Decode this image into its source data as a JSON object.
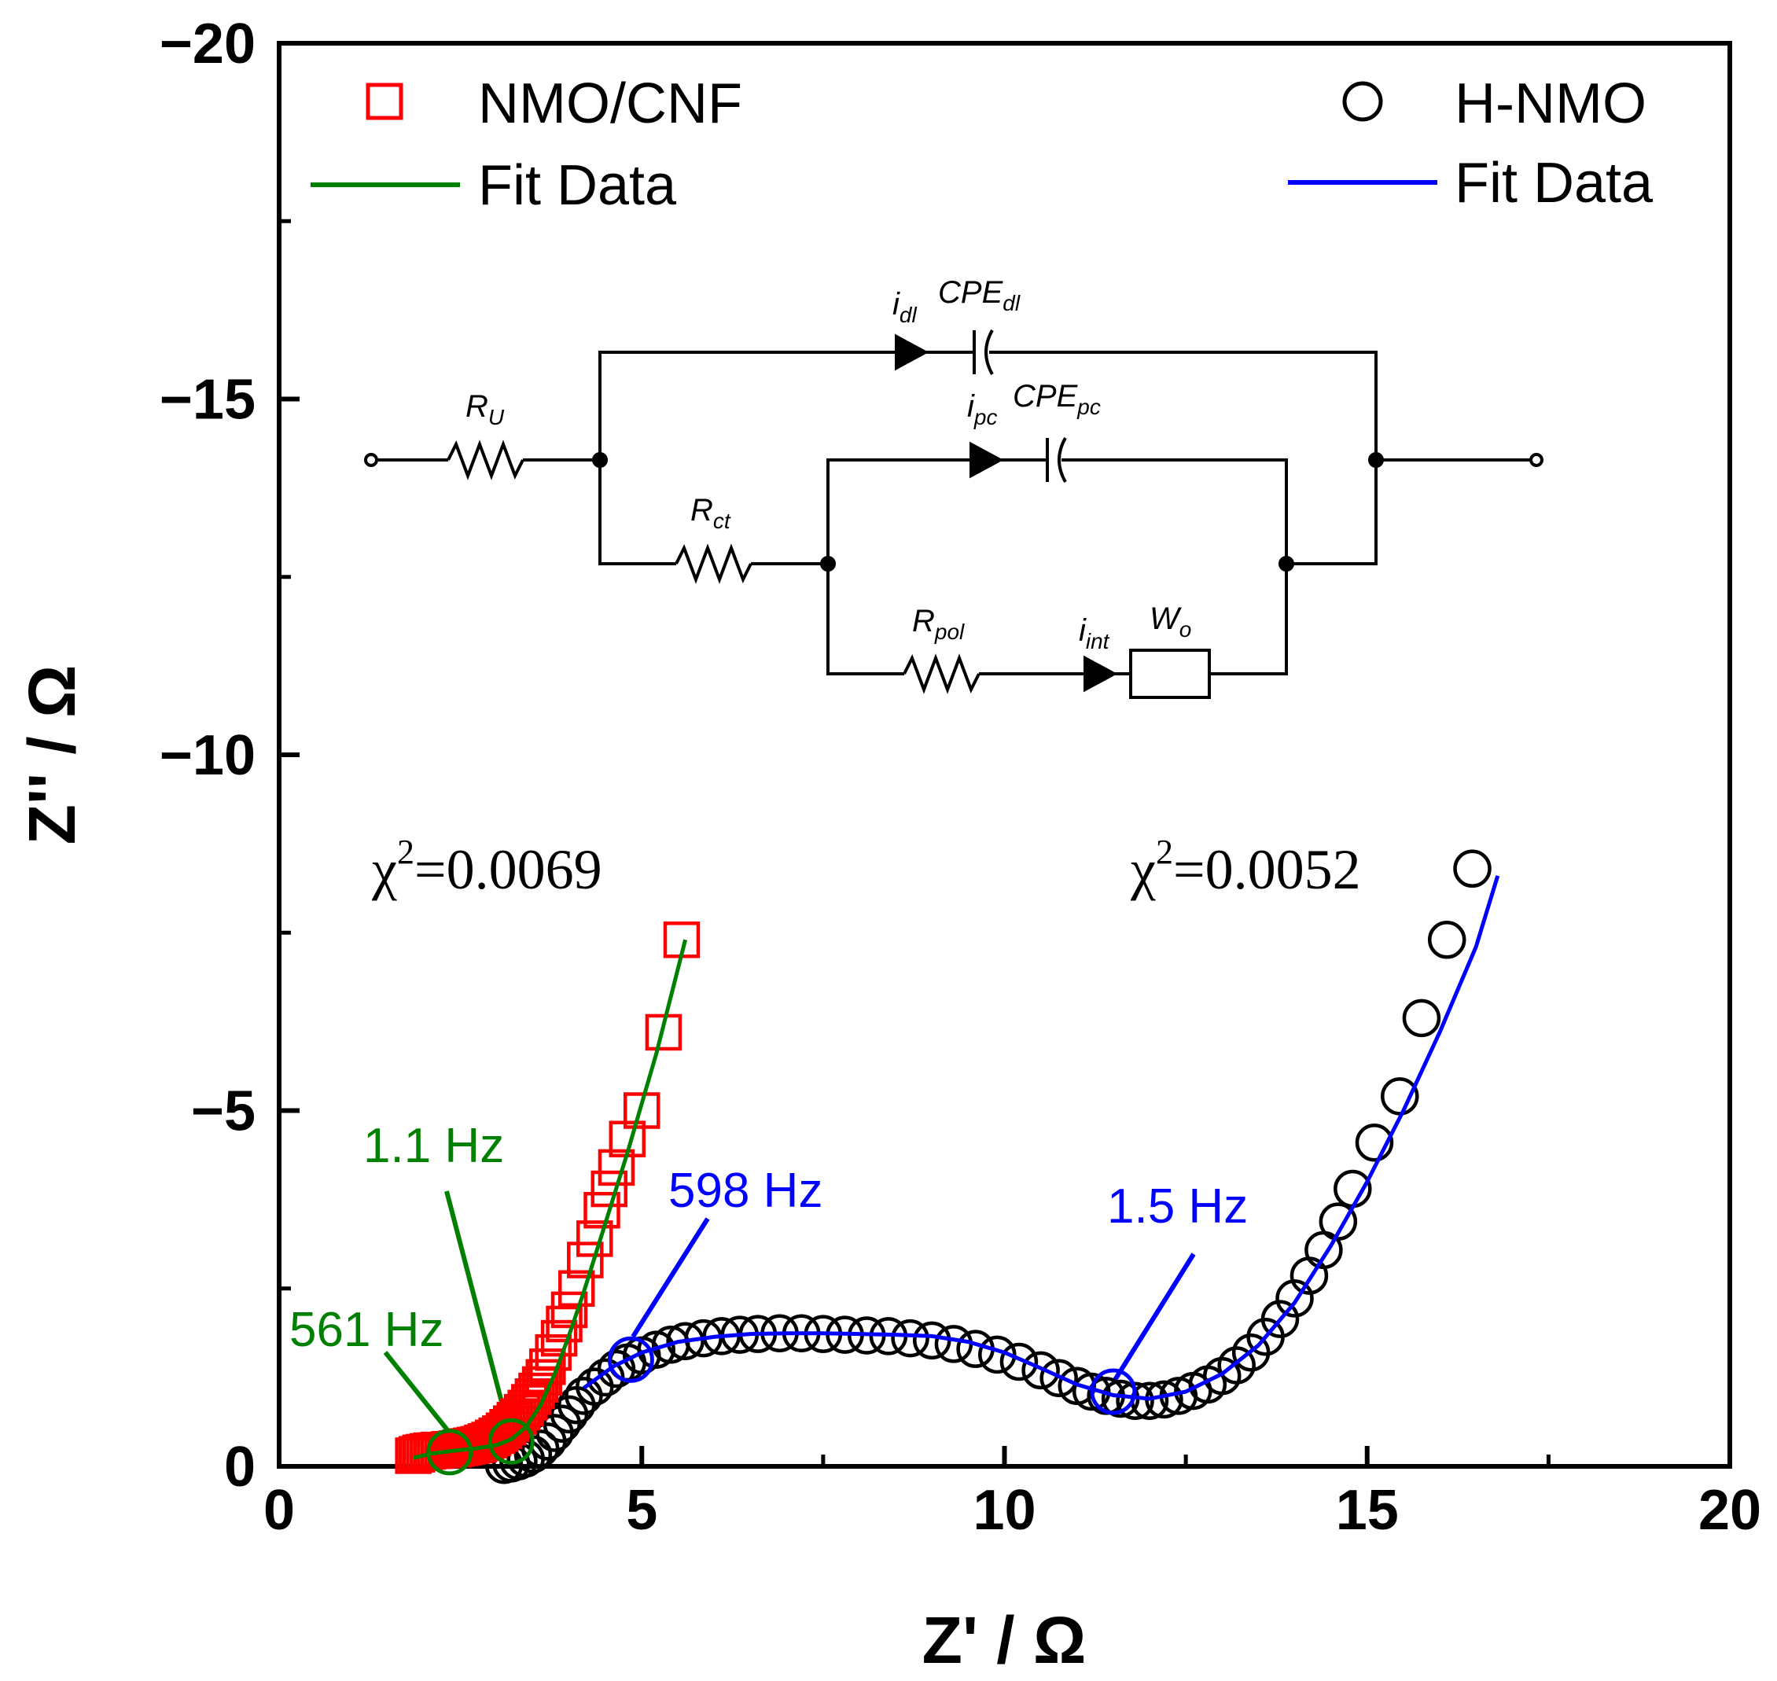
{
  "chart_data": {
    "type": "scatter",
    "xlabel": "Z' / Ω",
    "ylabel": "Z'' / Ω",
    "xlim": [
      0,
      20
    ],
    "ylim": [
      0,
      -20
    ],
    "xticks": [
      0,
      5,
      10,
      15,
      20
    ],
    "yticks": [
      0,
      -5,
      -10,
      -15,
      -20
    ],
    "xtick_labels": [
      "0",
      "5",
      "10",
      "15",
      "20"
    ],
    "ytick_labels": [
      "0",
      "−5",
      "−10",
      "−15",
      "−20"
    ],
    "grid": false,
    "colors": {
      "nmo": "#ff0000",
      "nmo_fit": "#008000",
      "hnmo": "#000000",
      "hnmo_fit": "#0000ff"
    },
    "series": [
      {
        "name": "NMO/CNF",
        "marker": "square",
        "x": [
          1.85,
          1.9,
          1.95,
          2.0,
          2.05,
          2.1,
          2.15,
          2.2,
          2.25,
          2.3,
          2.35,
          2.4,
          2.45,
          2.5,
          2.55,
          2.6,
          2.65,
          2.7,
          2.75,
          2.8,
          2.85,
          2.9,
          2.95,
          3.0,
          3.05,
          3.1,
          3.15,
          3.2,
          3.25,
          3.3,
          3.35,
          3.4,
          3.45,
          3.5,
          3.55,
          3.6,
          3.65,
          3.7,
          3.78,
          3.86,
          3.93,
          4.0,
          4.1,
          4.22,
          4.35,
          4.45,
          4.55,
          4.65,
          4.8,
          5.0,
          5.3,
          5.55
        ],
        "y": [
          -0.15,
          -0.17,
          -0.19,
          -0.2,
          -0.21,
          -0.22,
          -0.22,
          -0.23,
          -0.23,
          -0.23,
          -0.24,
          -0.24,
          -0.25,
          -0.26,
          -0.27,
          -0.28,
          -0.29,
          -0.3,
          -0.31,
          -0.33,
          -0.35,
          -0.37,
          -0.4,
          -0.43,
          -0.46,
          -0.5,
          -0.55,
          -0.6,
          -0.65,
          -0.7,
          -0.76,
          -0.82,
          -0.9,
          -0.98,
          -1.06,
          -1.15,
          -1.25,
          -1.4,
          -1.6,
          -1.8,
          -2.0,
          -2.2,
          -2.5,
          -2.9,
          -3.2,
          -3.6,
          -3.9,
          -4.2,
          -4.6,
          -5.0,
          -6.1,
          -7.4
        ]
      },
      {
        "name": "Fit Data",
        "line": true,
        "x": [
          1.85,
          2.1,
          2.4,
          2.7,
          3.0,
          3.2,
          3.4,
          3.6,
          3.8,
          4.0,
          4.2,
          4.4,
          4.6,
          4.8,
          5.0,
          5.2,
          5.4,
          5.6
        ],
        "y": [
          -0.12,
          -0.18,
          -0.22,
          -0.25,
          -0.3,
          -0.38,
          -0.55,
          -0.85,
          -1.3,
          -1.85,
          -2.45,
          -3.1,
          -3.75,
          -4.4,
          -5.1,
          -5.8,
          -6.6,
          -7.4
        ]
      },
      {
        "name": "H-NMO",
        "marker": "circle",
        "x": [
          3.1,
          3.2,
          3.3,
          3.4,
          3.5,
          3.6,
          3.7,
          3.8,
          3.9,
          4.0,
          4.1,
          4.2,
          4.35,
          4.5,
          4.65,
          4.8,
          5.0,
          5.2,
          5.4,
          5.6,
          5.85,
          6.1,
          6.35,
          6.6,
          6.9,
          7.2,
          7.5,
          7.8,
          8.1,
          8.4,
          8.7,
          9.0,
          9.3,
          9.6,
          9.9,
          10.2,
          10.5,
          10.75,
          11.0,
          11.2,
          11.4,
          11.6,
          11.8,
          12.0,
          12.2,
          12.4,
          12.6,
          12.8,
          13.0,
          13.2,
          13.4,
          13.6,
          13.8,
          14.0,
          14.2,
          14.4,
          14.6,
          14.8,
          15.1,
          15.45,
          15.75,
          16.1,
          16.45
        ],
        "y": [
          -0.02,
          -0.04,
          -0.07,
          -0.11,
          -0.17,
          -0.25,
          -0.35,
          -0.47,
          -0.6,
          -0.73,
          -0.86,
          -0.99,
          -1.12,
          -1.25,
          -1.37,
          -1.46,
          -1.56,
          -1.64,
          -1.71,
          -1.76,
          -1.8,
          -1.83,
          -1.85,
          -1.86,
          -1.87,
          -1.87,
          -1.86,
          -1.85,
          -1.84,
          -1.83,
          -1.8,
          -1.77,
          -1.72,
          -1.65,
          -1.57,
          -1.47,
          -1.35,
          -1.24,
          -1.13,
          -1.05,
          -0.99,
          -0.95,
          -0.92,
          -0.92,
          -0.94,
          -0.99,
          -1.06,
          -1.15,
          -1.27,
          -1.42,
          -1.6,
          -1.82,
          -2.07,
          -2.36,
          -2.68,
          -3.04,
          -3.44,
          -3.9,
          -4.55,
          -5.2,
          -6.3,
          -7.4,
          -8.4
        ]
      },
      {
        "name": "Fit Data",
        "line": true,
        "x": [
          4.2,
          4.6,
          5.0,
          5.5,
          6.0,
          6.5,
          7.0,
          7.5,
          8.0,
          8.5,
          9.0,
          9.5,
          10.0,
          10.5,
          11.0,
          11.5,
          12.0,
          12.5,
          13.0,
          13.5,
          14.0,
          14.5,
          15.0,
          15.5,
          16.0,
          16.5,
          16.8
        ],
        "y": [
          -1.1,
          -1.4,
          -1.6,
          -1.75,
          -1.82,
          -1.86,
          -1.87,
          -1.87,
          -1.86,
          -1.85,
          -1.83,
          -1.75,
          -1.6,
          -1.38,
          -1.15,
          -1.0,
          -0.95,
          -1.05,
          -1.3,
          -1.7,
          -2.3,
          -3.1,
          -4.0,
          -5.0,
          -6.1,
          -7.3,
          -8.3
        ]
      }
    ],
    "legend": [
      {
        "label": "NMO/CNF",
        "placement": "top-left"
      },
      {
        "label": "Fit Data",
        "placement": "top-left"
      },
      {
        "label": "H-NMO",
        "placement": "top-right"
      },
      {
        "label": "Fit Data",
        "placement": "top-right"
      }
    ],
    "annotations": {
      "chi_left": "χ²=0.0069",
      "chi_right": "χ²=0.0052",
      "chi_left_prefix": "χ",
      "chi_left_sup": "2",
      "chi_left_value": "=0.0069",
      "chi_right_prefix": "χ",
      "chi_right_sup": "2",
      "chi_right_value": "=0.0052",
      "freq_markers": [
        {
          "label": "561 Hz",
          "x": 2.35,
          "y": -0.2,
          "color": "#008000"
        },
        {
          "label": "1.1 Hz",
          "x": 3.2,
          "y": -0.35,
          "color": "#008000"
        },
        {
          "label": "598 Hz",
          "x": 4.85,
          "y": -1.5,
          "color": "#0000ff"
        },
        {
          "label": "1.5 Hz",
          "x": 11.5,
          "y": -1.05,
          "color": "#0000ff"
        }
      ]
    },
    "circuit": {
      "labels": [
        "R",
        "U",
        "R",
        "ct",
        "R",
        "pol",
        "i",
        "dl",
        "CPE",
        "dl",
        "i",
        "pc",
        "CPE",
        "pc",
        "i",
        "int",
        "W",
        "o"
      ],
      "RU": {
        "main": "R",
        "sub": "U"
      },
      "Rct": {
        "main": "R",
        "sub": "ct"
      },
      "Rpol": {
        "main": "R",
        "sub": "pol"
      },
      "idl": {
        "main": "i",
        "sub": "dl"
      },
      "CPEdl": {
        "main": "CPE",
        "sub": "dl"
      },
      "ipc": {
        "main": "i",
        "sub": "pc"
      },
      "CPEpc": {
        "main": "CPE",
        "sub": "pc"
      },
      "iint": {
        "main": "i",
        "sub": "int"
      },
      "Wo": {
        "main": "W",
        "sub": "o"
      }
    }
  }
}
